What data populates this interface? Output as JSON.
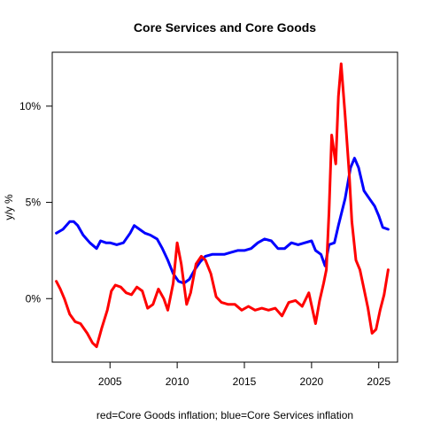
{
  "chart_data": {
    "type": "line",
    "title": "Core Services and Core Goods",
    "xlabel": "red=Core Goods inflation; blue=Core Services inflation",
    "ylabel": "y/y %",
    "xlim": [
      2000.7,
      2026.4
    ],
    "ylim": [
      -3.3,
      12.8
    ],
    "x_ticks": [
      2005,
      2010,
      2015,
      2020,
      2025
    ],
    "y_ticks": [
      0,
      5,
      10
    ],
    "y_tick_labels": [
      "0%",
      "5%",
      "10%"
    ],
    "grid": false,
    "legend": "none",
    "series": [
      {
        "color": "#0000ff",
        "points": [
          [
            2001.0,
            3.4
          ],
          [
            2001.5,
            3.6
          ],
          [
            2002.0,
            4.0
          ],
          [
            2002.3,
            4.0
          ],
          [
            2002.6,
            3.8
          ],
          [
            2003.0,
            3.3
          ],
          [
            2003.5,
            2.9
          ],
          [
            2004.0,
            2.6
          ],
          [
            2004.3,
            3.0
          ],
          [
            2004.7,
            2.9
          ],
          [
            2005.0,
            2.9
          ],
          [
            2005.5,
            2.8
          ],
          [
            2006.0,
            2.9
          ],
          [
            2006.5,
            3.4
          ],
          [
            2006.8,
            3.8
          ],
          [
            2007.2,
            3.6
          ],
          [
            2007.6,
            3.4
          ],
          [
            2008.0,
            3.3
          ],
          [
            2008.5,
            3.1
          ],
          [
            2008.9,
            2.6
          ],
          [
            2009.3,
            2.0
          ],
          [
            2009.7,
            1.3
          ],
          [
            2010.1,
            0.9
          ],
          [
            2010.5,
            0.8
          ],
          [
            2010.9,
            1.0
          ],
          [
            2011.3,
            1.5
          ],
          [
            2011.7,
            1.9
          ],
          [
            2012.1,
            2.2
          ],
          [
            2012.6,
            2.3
          ],
          [
            2013.0,
            2.3
          ],
          [
            2013.5,
            2.3
          ],
          [
            2014.0,
            2.4
          ],
          [
            2014.5,
            2.5
          ],
          [
            2015.0,
            2.5
          ],
          [
            2015.5,
            2.6
          ],
          [
            2016.0,
            2.9
          ],
          [
            2016.5,
            3.1
          ],
          [
            2017.0,
            3.0
          ],
          [
            2017.5,
            2.6
          ],
          [
            2018.0,
            2.6
          ],
          [
            2018.5,
            2.9
          ],
          [
            2019.0,
            2.8
          ],
          [
            2019.5,
            2.9
          ],
          [
            2020.0,
            3.0
          ],
          [
            2020.3,
            2.5
          ],
          [
            2020.7,
            2.3
          ],
          [
            2021.0,
            1.7
          ],
          [
            2021.3,
            2.8
          ],
          [
            2021.7,
            2.9
          ],
          [
            2022.0,
            3.8
          ],
          [
            2022.5,
            5.2
          ],
          [
            2022.9,
            6.8
          ],
          [
            2023.2,
            7.3
          ],
          [
            2023.5,
            6.8
          ],
          [
            2023.9,
            5.6
          ],
          [
            2024.3,
            5.2
          ],
          [
            2024.7,
            4.8
          ],
          [
            2025.0,
            4.3
          ],
          [
            2025.3,
            3.7
          ],
          [
            2025.7,
            3.6
          ]
        ]
      },
      {
        "color": "#ff0000",
        "points": [
          [
            2001.0,
            0.9
          ],
          [
            2001.3,
            0.5
          ],
          [
            2001.6,
            0.0
          ],
          [
            2002.0,
            -0.8
          ],
          [
            2002.4,
            -1.2
          ],
          [
            2002.8,
            -1.3
          ],
          [
            2003.3,
            -1.8
          ],
          [
            2003.7,
            -2.3
          ],
          [
            2004.0,
            -2.5
          ],
          [
            2004.4,
            -1.5
          ],
          [
            2004.8,
            -0.6
          ],
          [
            2005.1,
            0.4
          ],
          [
            2005.4,
            0.7
          ],
          [
            2005.8,
            0.6
          ],
          [
            2006.2,
            0.3
          ],
          [
            2006.6,
            0.2
          ],
          [
            2007.0,
            0.6
          ],
          [
            2007.4,
            0.4
          ],
          [
            2007.8,
            -0.5
          ],
          [
            2008.2,
            -0.3
          ],
          [
            2008.6,
            0.5
          ],
          [
            2009.0,
            0.0
          ],
          [
            2009.3,
            -0.6
          ],
          [
            2009.7,
            0.8
          ],
          [
            2010.0,
            2.9
          ],
          [
            2010.3,
            1.8
          ],
          [
            2010.7,
            -0.3
          ],
          [
            2011.0,
            0.3
          ],
          [
            2011.4,
            1.8
          ],
          [
            2011.8,
            2.2
          ],
          [
            2012.1,
            2.0
          ],
          [
            2012.5,
            1.3
          ],
          [
            2012.9,
            0.1
          ],
          [
            2013.3,
            -0.2
          ],
          [
            2013.8,
            -0.3
          ],
          [
            2014.3,
            -0.3
          ],
          [
            2014.8,
            -0.6
          ],
          [
            2015.3,
            -0.4
          ],
          [
            2015.8,
            -0.6
          ],
          [
            2016.3,
            -0.5
          ],
          [
            2016.8,
            -0.6
          ],
          [
            2017.3,
            -0.5
          ],
          [
            2017.8,
            -0.9
          ],
          [
            2018.3,
            -0.2
          ],
          [
            2018.8,
            -0.1
          ],
          [
            2019.3,
            -0.4
          ],
          [
            2019.8,
            0.3
          ],
          [
            2020.3,
            -1.3
          ],
          [
            2020.6,
            -0.1
          ],
          [
            2020.9,
            0.8
          ],
          [
            2021.1,
            1.5
          ],
          [
            2021.3,
            4.5
          ],
          [
            2021.5,
            8.5
          ],
          [
            2021.8,
            7.0
          ],
          [
            2022.0,
            10.5
          ],
          [
            2022.2,
            12.2
          ],
          [
            2022.5,
            9.5
          ],
          [
            2022.8,
            6.5
          ],
          [
            2023.0,
            4.0
          ],
          [
            2023.3,
            2.0
          ],
          [
            2023.6,
            1.5
          ],
          [
            2023.9,
            0.5
          ],
          [
            2024.2,
            -0.5
          ],
          [
            2024.5,
            -1.8
          ],
          [
            2024.8,
            -1.6
          ],
          [
            2025.1,
            -0.6
          ],
          [
            2025.4,
            0.2
          ],
          [
            2025.7,
            1.5
          ]
        ]
      }
    ]
  }
}
